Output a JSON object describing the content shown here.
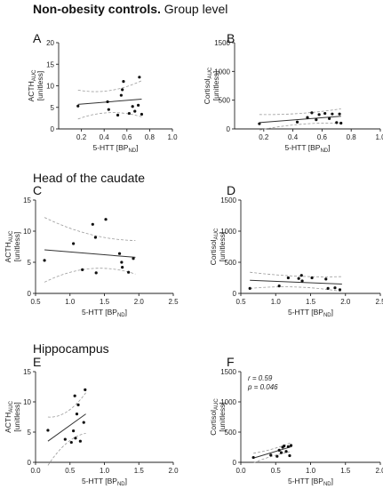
{
  "headers": {
    "top_bold": "Non-obesity controls.",
    "top_rest": " Group level",
    "row2": "Head of the caudate",
    "row3": "Hippocampus"
  },
  "chart_data": [
    {
      "id": "A",
      "type": "scatter",
      "xlabel": "5-HTT [BP",
      "xlabel_sub": "ND",
      "xlabel_end": "]",
      "ylabel_main": "ACTH",
      "ylabel_sub": "AUC",
      "ylabel_unit": "[unitless]",
      "xlim": [
        0,
        1.0
      ],
      "ylim": [
        0,
        20
      ],
      "xticks": [
        "0.2",
        "0.4",
        "0.6",
        "0.8",
        "1.0"
      ],
      "yticks": [
        "0",
        "5",
        "10",
        "15",
        "20"
      ],
      "points": [
        [
          0.17,
          5.3
        ],
        [
          0.43,
          6.3
        ],
        [
          0.44,
          4.5
        ],
        [
          0.52,
          3.2
        ],
        [
          0.55,
          7.8
        ],
        [
          0.56,
          9.1
        ],
        [
          0.57,
          11.0
        ],
        [
          0.62,
          3.6
        ],
        [
          0.65,
          5.2
        ],
        [
          0.67,
          4.1
        ],
        [
          0.7,
          5.5
        ],
        [
          0.71,
          12.0
        ],
        [
          0.73,
          3.4
        ]
      ],
      "fit": [
        [
          0.17,
          5.7
        ],
        [
          0.73,
          6.9
        ]
      ],
      "ci_upper": [
        [
          0.17,
          9.0
        ],
        [
          0.45,
          7.7
        ],
        [
          0.73,
          11.2
        ]
      ],
      "ci_lower": [
        [
          0.17,
          2.3
        ],
        [
          0.45,
          5.0
        ],
        [
          0.73,
          2.8
        ]
      ],
      "annotation": []
    },
    {
      "id": "B",
      "type": "scatter",
      "xlabel": "5-HTT [BP",
      "xlabel_sub": "ND",
      "xlabel_end": "]",
      "ylabel_main": "Cortisol",
      "ylabel_sub": "AUC",
      "ylabel_unit": "[unitless]",
      "xlim": [
        0,
        1.0
      ],
      "ylim": [
        0,
        1500
      ],
      "xticks": [
        "0.2",
        "0.4",
        "0.6",
        "0.8",
        "1.0"
      ],
      "yticks": [
        "0",
        "500",
        "1000",
        "1500"
      ],
      "points": [
        [
          0.17,
          90
        ],
        [
          0.43,
          120
        ],
        [
          0.5,
          200
        ],
        [
          0.53,
          280
        ],
        [
          0.56,
          160
        ],
        [
          0.58,
          250
        ],
        [
          0.62,
          270
        ],
        [
          0.65,
          180
        ],
        [
          0.67,
          260
        ],
        [
          0.7,
          110
        ],
        [
          0.72,
          260
        ],
        [
          0.73,
          100
        ]
      ],
      "fit": [
        [
          0.17,
          110
        ],
        [
          0.73,
          220
        ]
      ],
      "ci_upper": [
        [
          0.17,
          250
        ],
        [
          0.45,
          240
        ],
        [
          0.73,
          350
        ]
      ],
      "ci_lower": [
        [
          0.17,
          -20
        ],
        [
          0.45,
          120
        ],
        [
          0.73,
          100
        ]
      ],
      "annotation": []
    },
    {
      "id": "C",
      "type": "scatter",
      "xlabel": "5-HTT [BP",
      "xlabel_sub": "ND",
      "xlabel_end": "]",
      "ylabel_main": "ACTH",
      "ylabel_sub": "AUC",
      "ylabel_unit": "[unitless]",
      "xlim": [
        0.5,
        2.5
      ],
      "ylim": [
        0,
        15
      ],
      "xticks": [
        "0.5",
        "1.0",
        "1.5",
        "2.0",
        "2.5"
      ],
      "yticks": [
        "0",
        "5",
        "10",
        "15"
      ],
      "points": [
        [
          0.63,
          5.3
        ],
        [
          1.05,
          8.0
        ],
        [
          1.18,
          3.8
        ],
        [
          1.33,
          11.1
        ],
        [
          1.37,
          9.0
        ],
        [
          1.38,
          3.3
        ],
        [
          1.52,
          11.9
        ],
        [
          1.72,
          6.4
        ],
        [
          1.75,
          5.0
        ],
        [
          1.76,
          4.2
        ],
        [
          1.85,
          3.4
        ],
        [
          1.92,
          5.6
        ]
      ],
      "fit": [
        [
          0.63,
          7.0
        ],
        [
          1.95,
          5.8
        ]
      ],
      "ci_upper": [
        [
          0.63,
          12.2
        ],
        [
          1.3,
          8.6
        ],
        [
          1.95,
          8.5
        ]
      ],
      "ci_lower": [
        [
          0.63,
          1.8
        ],
        [
          1.3,
          5.5
        ],
        [
          1.95,
          3.1
        ]
      ],
      "annotation": []
    },
    {
      "id": "D",
      "type": "scatter",
      "xlabel": "5-HTT [BP",
      "xlabel_sub": "ND",
      "xlabel_end": "]",
      "ylabel_main": "Cortisol",
      "ylabel_sub": "AUC",
      "ylabel_unit": "[unitless]",
      "xlim": [
        0.5,
        2.5
      ],
      "ylim": [
        0,
        1500
      ],
      "xticks": [
        "0.5",
        "1.0",
        "1.5",
        "2.0",
        "2.5"
      ],
      "yticks": [
        "0",
        "500",
        "1000",
        "1500"
      ],
      "points": [
        [
          0.63,
          80
        ],
        [
          1.05,
          120
        ],
        [
          1.18,
          250
        ],
        [
          1.33,
          240
        ],
        [
          1.37,
          290
        ],
        [
          1.38,
          200
        ],
        [
          1.52,
          250
        ],
        [
          1.72,
          230
        ],
        [
          1.75,
          80
        ],
        [
          1.85,
          90
        ],
        [
          1.92,
          60
        ]
      ],
      "fit": [
        [
          0.63,
          210
        ],
        [
          1.95,
          150
        ]
      ],
      "ci_upper": [
        [
          0.63,
          340
        ],
        [
          1.3,
          250
        ],
        [
          1.95,
          270
        ]
      ],
      "ci_lower": [
        [
          0.63,
          80
        ],
        [
          1.3,
          150
        ],
        [
          1.95,
          30
        ]
      ],
      "annotation": []
    },
    {
      "id": "E",
      "type": "scatter",
      "xlabel": "5-HTT [BP",
      "xlabel_sub": "ND",
      "xlabel_end": "]",
      "ylabel_main": "ACTH",
      "ylabel_sub": "AUC",
      "ylabel_unit": "[unitless]",
      "xlim": [
        0,
        2.0
      ],
      "ylim": [
        0,
        15
      ],
      "xticks": [
        "0.0",
        "0.5",
        "1.0",
        "1.5",
        "2.0"
      ],
      "yticks": [
        "0",
        "5",
        "10",
        "15"
      ],
      "points": [
        [
          0.18,
          5.3
        ],
        [
          0.43,
          3.8
        ],
        [
          0.52,
          3.3
        ],
        [
          0.55,
          5.2
        ],
        [
          0.57,
          11.0
        ],
        [
          0.58,
          4.0
        ],
        [
          0.6,
          8.0
        ],
        [
          0.62,
          9.5
        ],
        [
          0.65,
          3.5
        ],
        [
          0.7,
          6.6
        ],
        [
          0.72,
          12.0
        ]
      ],
      "fit": [
        [
          0.18,
          3.5
        ],
        [
          0.73,
          8.0
        ]
      ],
      "ci_upper": [
        [
          0.18,
          7.5
        ],
        [
          0.45,
          7.2
        ],
        [
          0.73,
          11.5
        ]
      ],
      "ci_lower": [
        [
          0.18,
          -0.5
        ],
        [
          0.45,
          4.2
        ],
        [
          0.73,
          4.8
        ]
      ],
      "annotation": []
    },
    {
      "id": "F",
      "type": "scatter",
      "xlabel": "5-HTT [BP",
      "xlabel_sub": "ND",
      "xlabel_end": "]",
      "ylabel_main": "Cortisol",
      "ylabel_sub": "AUC",
      "ylabel_unit": "[unitless]",
      "xlim": [
        0,
        2.0
      ],
      "ylim": [
        0,
        1500
      ],
      "xticks": [
        "0.0",
        "0.5",
        "1.0",
        "1.5",
        "2.0"
      ],
      "yticks": [
        "0",
        "500",
        "1000",
        "1500"
      ],
      "points": [
        [
          0.18,
          80
        ],
        [
          0.43,
          120
        ],
        [
          0.52,
          100
        ],
        [
          0.55,
          200
        ],
        [
          0.58,
          160
        ],
        [
          0.6,
          250
        ],
        [
          0.62,
          270
        ],
        [
          0.65,
          180
        ],
        [
          0.68,
          260
        ],
        [
          0.7,
          110
        ],
        [
          0.72,
          280
        ]
      ],
      "fit": [
        [
          0.18,
          70
        ],
        [
          0.73,
          260
        ]
      ],
      "ci_upper": [
        [
          0.18,
          150
        ],
        [
          0.45,
          200
        ],
        [
          0.73,
          330
        ]
      ],
      "ci_lower": [
        [
          0.18,
          -10
        ],
        [
          0.45,
          120
        ],
        [
          0.73,
          180
        ]
      ],
      "annotation": [
        "r = 0.59",
        "p = 0.046"
      ]
    }
  ]
}
